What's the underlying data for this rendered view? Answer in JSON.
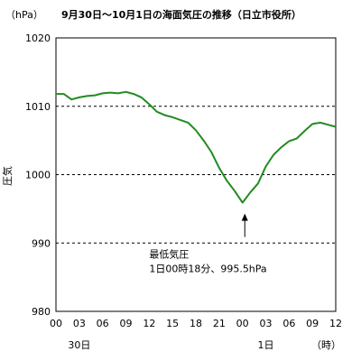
{
  "chart_data": {
    "type": "line",
    "title": "9月30日～10月1日の海面気圧の推移（日立市役所）",
    "unit_label": "（hPa）",
    "ylabel": "圧気",
    "ylim": [
      980,
      1020
    ],
    "y_ticks": [
      "980",
      "990",
      "1000",
      "1010",
      "1020"
    ],
    "grid": "dashed horizontal lines at 990, 1000 and 1010",
    "x_range_hours": [
      0,
      36
    ],
    "x_ticks": [
      "00",
      "03",
      "06",
      "09",
      "12",
      "15",
      "18",
      "21",
      "00",
      "03",
      "06",
      "09",
      "12"
    ],
    "day_labels": [
      {
        "label": "30日",
        "at_hour": 3
      },
      {
        "label": "1日",
        "at_hour": 27
      }
    ],
    "x_unit": "（時）",
    "series": [
      {
        "color": "#228B22",
        "x": [
          0,
          1,
          2,
          3,
          4,
          5,
          6,
          7,
          8,
          9,
          10,
          11,
          12,
          13,
          14,
          15,
          16,
          17,
          18,
          19,
          20,
          21,
          22,
          23,
          24,
          25,
          26,
          27,
          28,
          29,
          30,
          31,
          32,
          33,
          34,
          35,
          36
        ],
        "y": [
          1011.8,
          1011.8,
          1011.0,
          1011.3,
          1011.5,
          1011.6,
          1011.9,
          1012.0,
          1011.9,
          1012.1,
          1011.8,
          1011.3,
          1010.3,
          1009.2,
          1008.7,
          1008.4,
          1008.0,
          1007.6,
          1006.5,
          1005.0,
          1003.3,
          1001.0,
          999.1,
          997.6,
          995.9,
          997.4,
          998.7,
          1001.2,
          1002.9,
          1004.0,
          1004.9,
          1005.3,
          1006.4,
          1007.4,
          1007.6,
          1007.3,
          1007.0
        ]
      }
    ],
    "annotation": {
      "line1": "最低気圧",
      "line2": "1日00時18分、995.5hPa",
      "x_hour": 24.3,
      "y_value": 995.5
    }
  }
}
